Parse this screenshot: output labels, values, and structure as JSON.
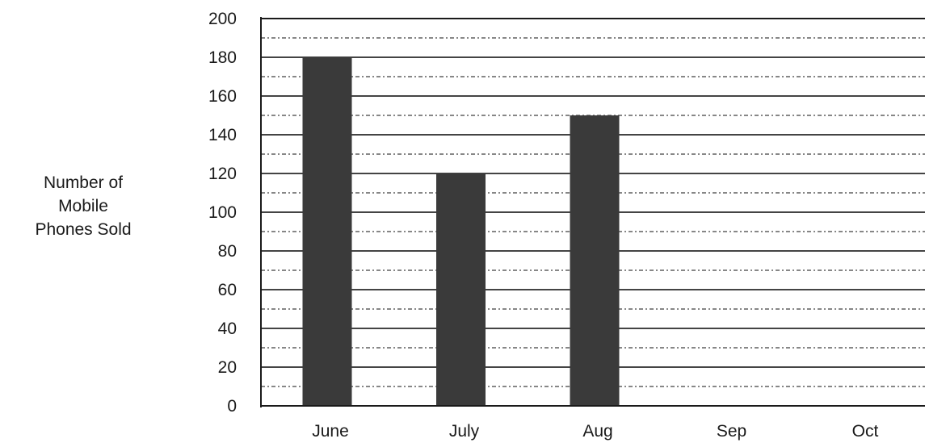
{
  "chart_data": {
    "type": "bar",
    "categories": [
      "June",
      "July",
      "Aug",
      "Sep",
      "Oct"
    ],
    "values": [
      180,
      120,
      150,
      null,
      null
    ],
    "title": "",
    "xlabel": "",
    "ylabel": "Number of Mobile Phones Sold",
    "ylabel_lines": [
      "Number of",
      "Mobile",
      "Phones Sold"
    ],
    "ylim": [
      0,
      200
    ],
    "yticks": [
      0,
      20,
      40,
      60,
      80,
      100,
      120,
      140,
      160,
      180,
      200
    ],
    "major_grid_step": 20,
    "minor_grid_step": 10,
    "grid": true,
    "legend": "none",
    "bar_color": "#3a3a3a",
    "grid_color": "#2a2a2a"
  }
}
